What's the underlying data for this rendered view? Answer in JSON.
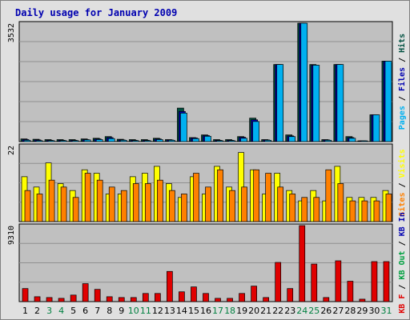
{
  "title": "Daily usage for January 2009",
  "colors": {
    "hits": "#005040",
    "files": "#0000b0",
    "pages": "#00b0f0",
    "visits": "#ffff00",
    "sites": "#ff8000",
    "kb_in": "#0000b0",
    "kb_out": "#00a040",
    "kb_f": "#e00000",
    "weekend": "#008040",
    "weekday": "#000000",
    "panel": "#c0c0c0"
  },
  "chart_data": [
    {
      "type": "bar",
      "title": "Daily usage for January 2009",
      "categories": [
        "1",
        "2",
        "3",
        "4",
        "5",
        "6",
        "7",
        "8",
        "9",
        "10",
        "11",
        "12",
        "13",
        "14",
        "15",
        "16",
        "17",
        "18",
        "19",
        "20",
        "21",
        "22",
        "23",
        "24",
        "25",
        "26",
        "27",
        "28",
        "29",
        "30",
        "31"
      ],
      "weekend_days": [
        "3",
        "4",
        "10",
        "11",
        "17",
        "18",
        "24",
        "25",
        "31"
      ],
      "ylim": [
        0,
        3532
      ],
      "max_label": "3532",
      "legend": [
        "Pages",
        "Files",
        "Hits"
      ],
      "series": [
        {
          "name": "Hits",
          "values": [
            80,
            70,
            60,
            60,
            60,
            80,
            100,
            150,
            70,
            60,
            60,
            100,
            60,
            1000,
            120,
            200,
            60,
            60,
            150,
            700,
            60,
            2300,
            200,
            3532,
            2300,
            60,
            2300,
            150,
            20,
            800,
            2400
          ]
        },
        {
          "name": "Files",
          "values": [
            60,
            50,
            40,
            40,
            40,
            60,
            80,
            120,
            50,
            40,
            40,
            80,
            50,
            900,
            110,
            180,
            40,
            40,
            130,
            650,
            50,
            2300,
            170,
            3532,
            2280,
            50,
            2300,
            120,
            10,
            800,
            2400
          ]
        },
        {
          "name": "Pages",
          "values": [
            40,
            30,
            30,
            30,
            30,
            50,
            60,
            90,
            40,
            30,
            30,
            60,
            40,
            850,
            90,
            160,
            30,
            30,
            100,
            600,
            40,
            2300,
            150,
            3532,
            2280,
            40,
            2300,
            100,
            10,
            800,
            2400
          ]
        }
      ]
    },
    {
      "type": "bar",
      "ylim": [
        0,
        22
      ],
      "max_label": "22",
      "legend": [
        "Visits",
        "Sites"
      ],
      "series": [
        {
          "name": "Visits",
          "values": [
            13,
            10,
            17,
            11,
            9,
            15,
            14,
            8,
            8,
            13,
            14,
            16,
            11,
            7,
            13,
            8,
            16,
            10,
            20,
            15,
            8,
            14,
            9,
            6,
            9,
            6,
            16,
            7,
            7,
            7,
            9
          ]
        },
        {
          "name": "Sites",
          "values": [
            9,
            8,
            12,
            10,
            7,
            14,
            12,
            10,
            9,
            11,
            11,
            12,
            9,
            8,
            14,
            10,
            15,
            9,
            10,
            15,
            14,
            10,
            8,
            7,
            7,
            15,
            11,
            6,
            6,
            6,
            8
          ]
        }
      ]
    },
    {
      "type": "bar",
      "ylim": [
        0,
        9310
      ],
      "max_label": "9310",
      "legend": [
        "KB F",
        "KB Out",
        "KB In"
      ],
      "series": [
        {
          "name": "KB F",
          "values": [
            1600,
            600,
            500,
            400,
            800,
            2200,
            1500,
            600,
            500,
            500,
            1000,
            1000,
            3700,
            1200,
            1800,
            1000,
            400,
            400,
            1000,
            1900,
            500,
            4800,
            1600,
            9310,
            4600,
            500,
            5000,
            2500,
            300,
            4900,
            4900
          ]
        }
      ]
    }
  ]
}
